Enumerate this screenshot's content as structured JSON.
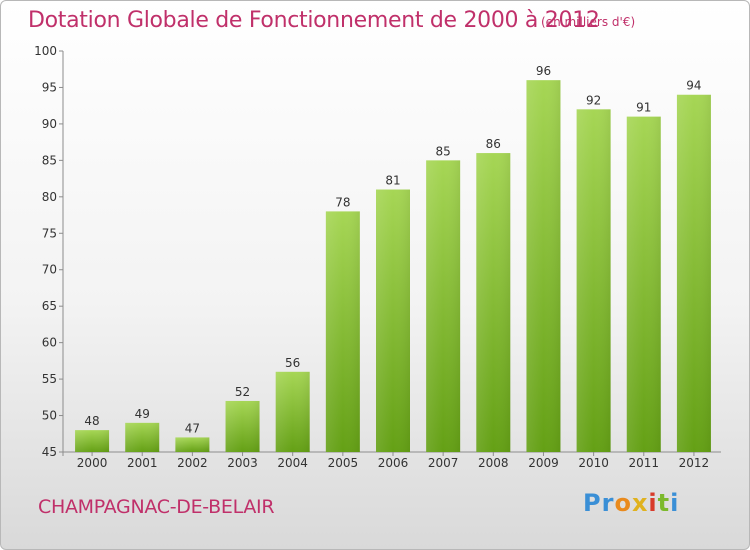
{
  "title": "Dotation Globale de Fonctionnement de 2000 à 2012",
  "subtitle": "(en milliers d'€)",
  "commune": "CHAMPAGNAC-DE-BELAIR",
  "logo": {
    "text": [
      "Pr",
      "o",
      "x",
      "i",
      "t",
      "i"
    ]
  },
  "colors": {
    "title": "#c0306a",
    "bar_light": "#a6d655",
    "bar_dark": "#64a015"
  },
  "chart_data": {
    "type": "bar",
    "categories": [
      "2000",
      "2001",
      "2002",
      "2003",
      "2004",
      "2005",
      "2006",
      "2007",
      "2008",
      "2009",
      "2010",
      "2011",
      "2012"
    ],
    "values": [
      48,
      49,
      47,
      52,
      56,
      78,
      81,
      85,
      86,
      96,
      92,
      91,
      94
    ],
    "title": "Dotation Globale de Fonctionnement de 2000 à 2012",
    "xlabel": "",
    "ylabel": "",
    "ylim": [
      45,
      100
    ],
    "yticks": [
      45,
      50,
      55,
      60,
      65,
      70,
      75,
      80,
      85,
      90,
      95,
      100
    ],
    "grid": false,
    "data_labels": true
  }
}
